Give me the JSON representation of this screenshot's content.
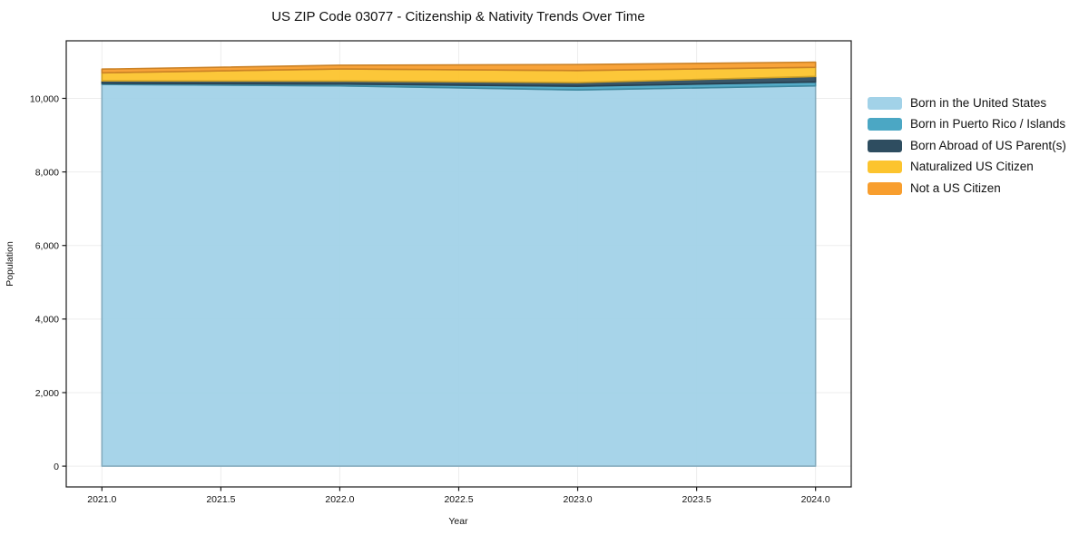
{
  "chart_data": {
    "type": "area",
    "stacked": true,
    "title": "US ZIP Code 03077 - Citizenship & Nativity Trends Over Time",
    "xlabel": "Year",
    "ylabel": "Population",
    "x": [
      2021,
      2022,
      2023,
      2024
    ],
    "series": [
      {
        "name": "Born in the United States",
        "color": "#A2D2E8",
        "values": [
          10380,
          10340,
          10230,
          10340
        ]
      },
      {
        "name": "Born in Puerto Rico / Islands",
        "color": "#4BA7C4",
        "values": [
          30,
          50,
          100,
          105
        ]
      },
      {
        "name": "Born Abroad of US Parent(s)",
        "color": "#2E4D60",
        "values": [
          65,
          80,
          100,
          150
        ]
      },
      {
        "name": "Naturalized US Citizen",
        "color": "#FCC42E",
        "values": [
          220,
          330,
          325,
          250
        ]
      },
      {
        "name": "Not a US Citizen",
        "color": "#F89E2E",
        "values": [
          100,
          100,
          165,
          140
        ]
      }
    ],
    "xlim": [
      2020.85,
      2024.15
    ],
    "ylim": [
      -565,
      11565
    ],
    "xticks": [
      2021.0,
      2021.5,
      2022.0,
      2022.5,
      2023.0,
      2023.5,
      2024.0
    ],
    "xtick_labels": [
      "2021.0",
      "2021.5",
      "2022.0",
      "2022.5",
      "2023.0",
      "2023.5",
      "2024.0"
    ],
    "yticks": [
      0,
      2000,
      4000,
      6000,
      8000,
      10000
    ],
    "ytick_labels": [
      "0",
      "2,000",
      "4,000",
      "6,000",
      "8,000",
      "10,000"
    ],
    "grid": true,
    "grid_color": "#ededed",
    "frame_color": "#1a1a1a",
    "legend_position": "right"
  }
}
